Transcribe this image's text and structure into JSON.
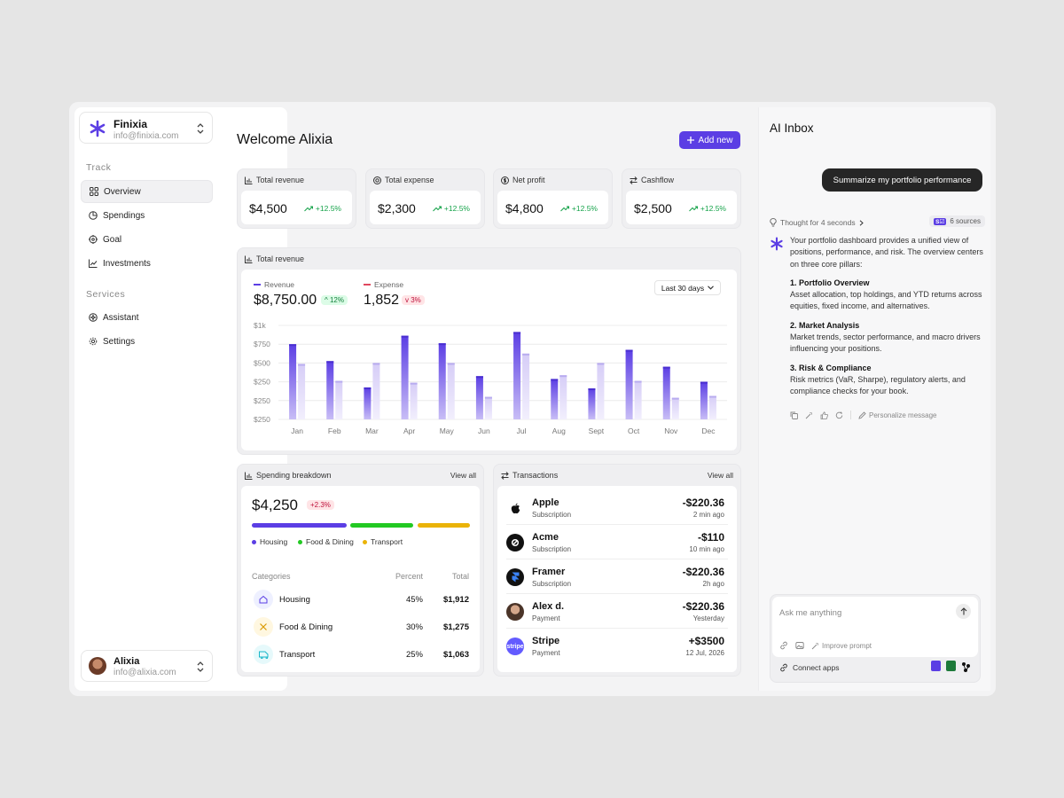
{
  "org": {
    "name": "Finixia",
    "email": "info@finixia.com"
  },
  "sidebar": {
    "track_label": "Track",
    "services_label": "Services",
    "track_items": [
      {
        "label": "Overview",
        "icon": "grid-icon",
        "active": true
      },
      {
        "label": "Spendings",
        "icon": "pie-icon"
      },
      {
        "label": "Goal",
        "icon": "target-icon"
      },
      {
        "label": "Investments",
        "icon": "chart-line-icon"
      }
    ],
    "service_items": [
      {
        "label": "Assistant",
        "icon": "sparkle-icon"
      },
      {
        "label": "Settings",
        "icon": "gear-icon"
      }
    ]
  },
  "user": {
    "name": "Alixia",
    "email": "info@alixia.com"
  },
  "main": {
    "welcome": "Welcome Alixia",
    "add_new": "Add new",
    "kpis": [
      {
        "label": "Total revenue",
        "value": "$4,500",
        "delta": "+12.5%"
      },
      {
        "label": "Total expense",
        "value": "$2,300",
        "delta": "+12.5%"
      },
      {
        "label": "Net profit",
        "value": "$4,800",
        "delta": "+12.5%"
      },
      {
        "label": "Cashflow",
        "value": "$2,500",
        "delta": "+12.5%"
      }
    ]
  },
  "revenue_card": {
    "title": "Total revenue",
    "revenue_label": "Revenue",
    "revenue_value": "$8,750.00",
    "revenue_delta": "^ 12%",
    "expense_label": "Expense",
    "expense_value": "1,852",
    "expense_delta": "v 3%",
    "range": "Last 30 days"
  },
  "chart_data": {
    "type": "bar",
    "categories": [
      "Jan",
      "Feb",
      "Mar",
      "Apr",
      "May",
      "Jun",
      "Jul",
      "Aug",
      "Sept",
      "Oct",
      "Nov",
      "Dec"
    ],
    "y_tick_labels": [
      "$1k",
      "$750",
      "$500",
      "$250",
      "$250",
      "$250"
    ],
    "series": [
      {
        "name": "Revenue",
        "values": [
          800,
          620,
          340,
          890,
          810,
          460,
          930,
          430,
          330,
          740,
          560,
          400
        ],
        "color": "#5b3ee4"
      },
      {
        "name": "Expense",
        "values": [
          590,
          410,
          600,
          390,
          600,
          240,
          700,
          470,
          600,
          410,
          230,
          250
        ],
        "color": "#d9d2f8"
      }
    ],
    "ylim": [
      0,
      1000
    ]
  },
  "spending": {
    "title": "Spending breakdown",
    "view_all": "View all",
    "total": "$4,250",
    "delta": "+2.3%",
    "bars": [
      {
        "label": "Housing",
        "color": "#5b3ee4",
        "share": 0.45
      },
      {
        "label": "Food & Dining",
        "color": "#22c922",
        "share": 0.3
      },
      {
        "label": "Transport",
        "color": "#eab308",
        "share": 0.25
      }
    ],
    "headers": {
      "categories": "Categories",
      "percent": "Percent",
      "total": "Total"
    },
    "rows": [
      {
        "name": "Housing",
        "percent": "45%",
        "total": "$1,912",
        "icon": "home-icon",
        "bg": "#eef0ff",
        "fg": "#5b3ee4"
      },
      {
        "name": "Food & Dining",
        "percent": "30%",
        "total": "$1,275",
        "icon": "fork-knife-icon",
        "bg": "#fff7e0",
        "fg": "#d99a00"
      },
      {
        "name": "Transport",
        "percent": "25%",
        "total": "$1,063",
        "icon": "bus-icon",
        "bg": "#e6f9fb",
        "fg": "#18b6c9"
      }
    ]
  },
  "transactions": {
    "title": "Transactions",
    "view_all": "View all",
    "rows": [
      {
        "name": "Apple",
        "type": "Subscription",
        "amount": "-$220.36",
        "time": "2 min ago",
        "logo": "apple-icon",
        "color": "#ffffff"
      },
      {
        "name": "Acme",
        "type": "Subscription",
        "amount": "-$110",
        "time": "10 min ago",
        "logo": "acme-icon",
        "color": "#111111"
      },
      {
        "name": "Framer",
        "type": "Subscription",
        "amount": "-$220.36",
        "time": "2h ago",
        "logo": "framer-icon",
        "color": "#111111"
      },
      {
        "name": "Alex d.",
        "type": "Payment",
        "amount": "-$220.36",
        "time": "Yesterday",
        "logo": "avatar-icon",
        "color": "#7a5a48"
      },
      {
        "name": "Stripe",
        "type": "Payment",
        "amount": "+$3500",
        "time": "12 Jul, 2026",
        "logo": "stripe-icon",
        "color": "#635bff",
        "logo_text": "stripe"
      }
    ]
  },
  "ai": {
    "title": "AI Inbox",
    "prompt": "Summarize my portfolio performance",
    "thought": "Thought for 4 seconds",
    "sources_badge": "S☑",
    "sources": "6 sources",
    "intro": "Your portfolio dashboard provides a unified view of positions, performance, and risk. The overview centers on three core pillars:",
    "points": [
      {
        "title": "1. Portfolio Overview",
        "text": "Asset allocation, top holdings, and YTD returns across equities, fixed income, and alternatives."
      },
      {
        "title": "2. Market Analysis",
        "text": "Market trends, sector performance, and macro drivers influencing your positions."
      },
      {
        "title": "3. Risk & Compliance",
        "text": "Risk metrics (VaR, Sharpe), regulatory alerts, and compliance checks for your book."
      }
    ],
    "personalize": "Personalize message",
    "placeholder": "Ask me anything",
    "improve": "Improve prompt",
    "connect": "Connect apps"
  }
}
